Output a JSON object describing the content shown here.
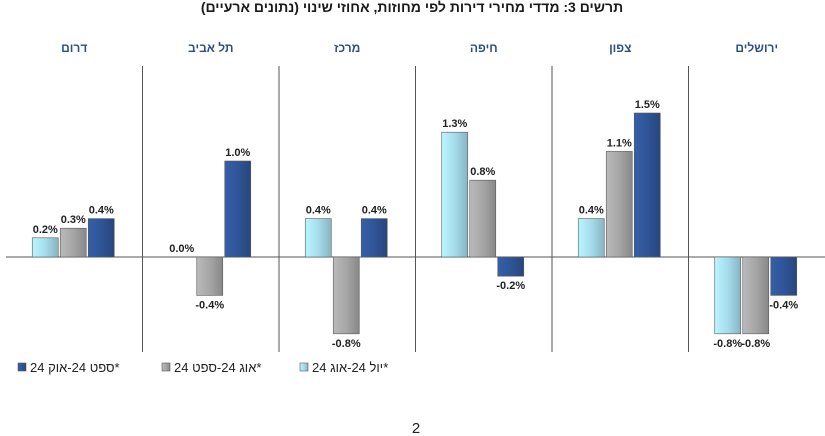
{
  "chart_data": {
    "type": "bar",
    "title": "תרשים 3: מדדי מחירי דירות לפי מחוזות, אחוזי שינוי (נתונים ארעיים)",
    "categories": [
      "דרום",
      "תל אביב",
      "מרכז",
      "חיפה",
      "צפון",
      "ירושלים"
    ],
    "series": [
      {
        "name": "יול 24-אוג 24*",
        "color": "#a6dcec",
        "values": [
          0.2,
          0.0,
          0.4,
          1.3,
          0.4,
          -0.8
        ],
        "labels": [
          "0.2%",
          "0.0%",
          "0.4%",
          "1.3%",
          "0.4%",
          "-0.8%"
        ]
      },
      {
        "name": "אוג 24-ספט 24*",
        "color": "#a6a6a6",
        "values": [
          0.3,
          -0.4,
          -0.8,
          0.8,
          1.1,
          -0.8
        ],
        "labels": [
          "0.3%",
          "-0.4%",
          "-0.8%",
          "0.8%",
          "1.1%",
          "-0.8%"
        ]
      },
      {
        "name": "ספט 24-אוק 24*",
        "color": "#2f5597",
        "values": [
          0.4,
          1.0,
          0.4,
          -0.2,
          1.5,
          -0.4
        ],
        "labels": [
          "0.4%",
          "1.0%",
          "0.4%",
          "-0.2%",
          "1.5%",
          "-0.4%"
        ]
      }
    ],
    "ylim": [
      -0.85,
      1.6
    ],
    "legend_position": "bottom-left",
    "grid": false
  },
  "page_number": "2"
}
